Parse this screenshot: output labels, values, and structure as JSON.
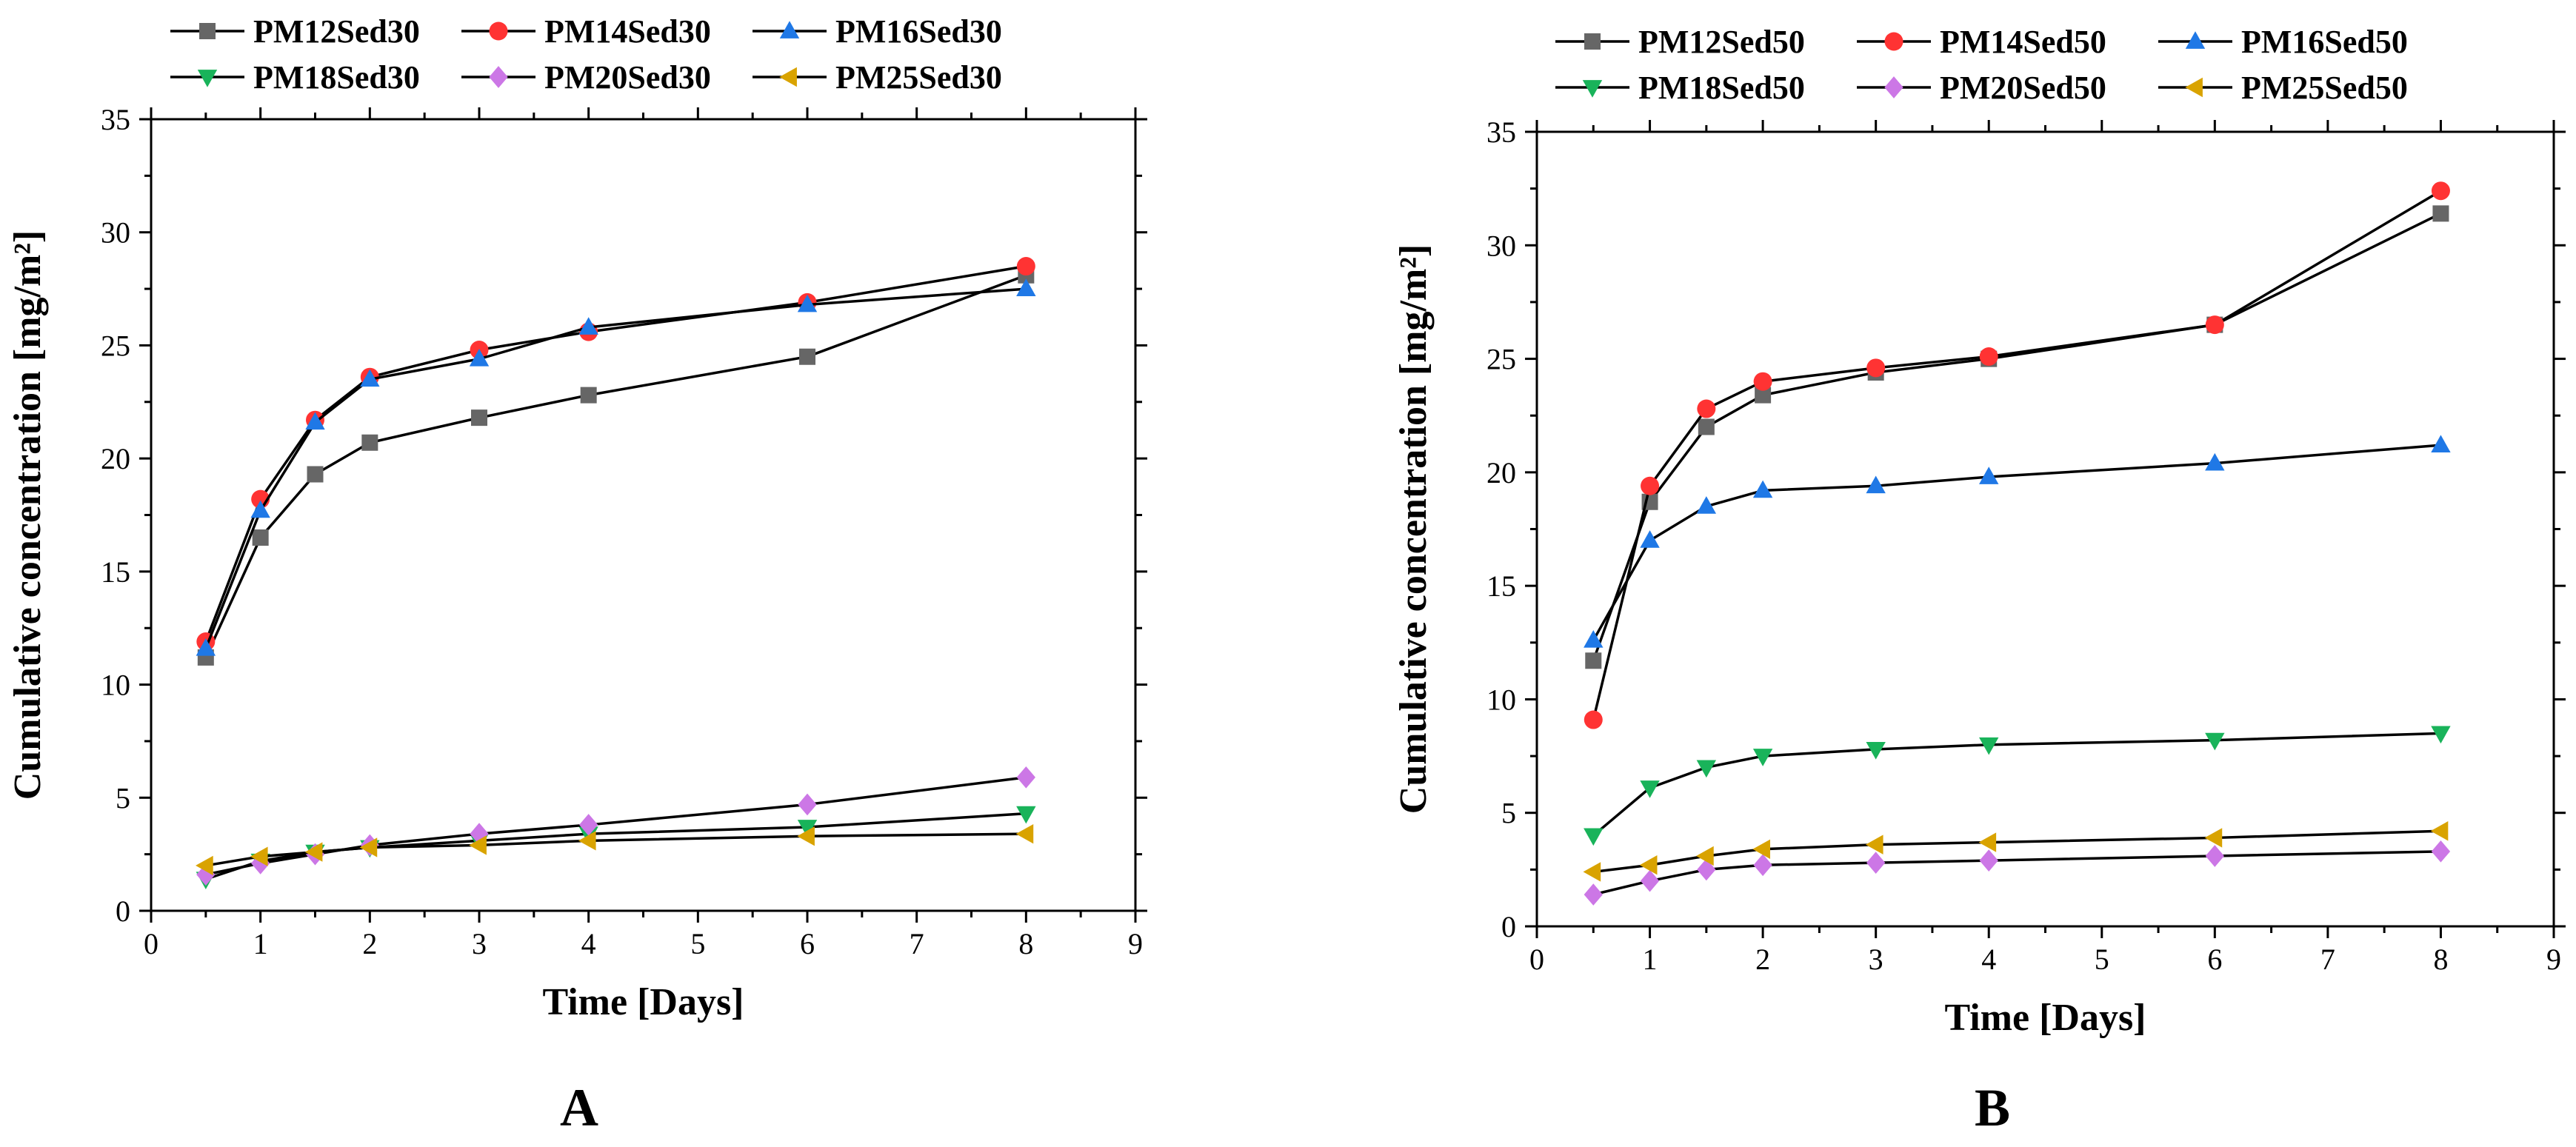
{
  "chart_data": [
    {
      "type": "line",
      "panel_label": "A",
      "title": "",
      "xlabel": "Time [Days]",
      "ylabel": "Cumulative concentration [mg/m²]",
      "xlim": [
        0,
        9
      ],
      "ylim": [
        0,
        35
      ],
      "xticks": [
        0,
        1,
        2,
        3,
        4,
        5,
        6,
        7,
        8,
        9
      ],
      "yticks": [
        0,
        5,
        10,
        15,
        20,
        25,
        30,
        35
      ],
      "grid": false,
      "legend_position": "top, above plot",
      "x": [
        0.5,
        1,
        1.5,
        2,
        3,
        4,
        6,
        8
      ],
      "series": [
        {
          "name": "PM12Sed30",
          "color": "#666666",
          "marker": "square",
          "values": [
            11.2,
            16.5,
            19.3,
            20.7,
            21.8,
            22.8,
            24.5,
            28.1
          ]
        },
        {
          "name": "PM14Sed30",
          "color": "#ff3333",
          "marker": "circle",
          "values": [
            11.9,
            18.2,
            21.7,
            23.6,
            24.8,
            25.6,
            26.9,
            28.5
          ]
        },
        {
          "name": "PM16Sed30",
          "color": "#1f78e6",
          "marker": "triangle-up",
          "values": [
            11.6,
            17.7,
            21.6,
            23.5,
            24.4,
            25.8,
            26.8,
            27.5
          ]
        },
        {
          "name": "PM18Sed30",
          "color": "#19b35a",
          "marker": "triangle-down",
          "values": [
            1.4,
            2.2,
            2.6,
            2.8,
            3.1,
            3.4,
            3.7,
            4.3
          ]
        },
        {
          "name": "PM20Sed30",
          "color": "#cc77e6",
          "marker": "diamond",
          "values": [
            1.6,
            2.1,
            2.5,
            2.9,
            3.4,
            3.8,
            4.7,
            5.9
          ]
        },
        {
          "name": "PM25Sed30",
          "color": "#d9a300",
          "marker": "triangle-left",
          "values": [
            2.0,
            2.4,
            2.6,
            2.8,
            2.9,
            3.1,
            3.3,
            3.4
          ]
        }
      ]
    },
    {
      "type": "line",
      "panel_label": "B",
      "title": "",
      "xlabel": "Time [Days]",
      "ylabel": "Cumulative concentration [mg/m²]",
      "xlim": [
        0,
        9
      ],
      "ylim": [
        0,
        35
      ],
      "xticks": [
        0,
        1,
        2,
        3,
        4,
        5,
        6,
        7,
        8,
        9
      ],
      "yticks": [
        0,
        5,
        10,
        15,
        20,
        25,
        30,
        35
      ],
      "grid": false,
      "legend_position": "top, above plot",
      "x": [
        0.5,
        1,
        1.5,
        2,
        3,
        4,
        6,
        8
      ],
      "series": [
        {
          "name": "PM12Sed50",
          "color": "#666666",
          "marker": "square",
          "values": [
            11.7,
            18.7,
            22.0,
            23.4,
            24.4,
            25.0,
            26.5,
            31.4
          ]
        },
        {
          "name": "PM14Sed50",
          "color": "#ff3333",
          "marker": "circle",
          "values": [
            9.1,
            19.4,
            22.8,
            24.0,
            24.6,
            25.1,
            26.5,
            32.4
          ]
        },
        {
          "name": "PM16Sed50",
          "color": "#1f78e6",
          "marker": "triangle-up",
          "values": [
            12.6,
            17.0,
            18.5,
            19.2,
            19.4,
            19.8,
            20.4,
            21.2
          ]
        },
        {
          "name": "PM18Sed50",
          "color": "#19b35a",
          "marker": "triangle-down",
          "values": [
            4.0,
            6.1,
            7.0,
            7.5,
            7.8,
            8.0,
            8.2,
            8.5
          ]
        },
        {
          "name": "PM20Sed50",
          "color": "#cc77e6",
          "marker": "diamond",
          "values": [
            1.4,
            2.0,
            2.5,
            2.7,
            2.8,
            2.9,
            3.1,
            3.3
          ]
        },
        {
          "name": "PM25Sed50",
          "color": "#d9a300",
          "marker": "triangle-left",
          "values": [
            2.4,
            2.7,
            3.1,
            3.4,
            3.6,
            3.7,
            3.9,
            4.2
          ]
        }
      ]
    }
  ]
}
